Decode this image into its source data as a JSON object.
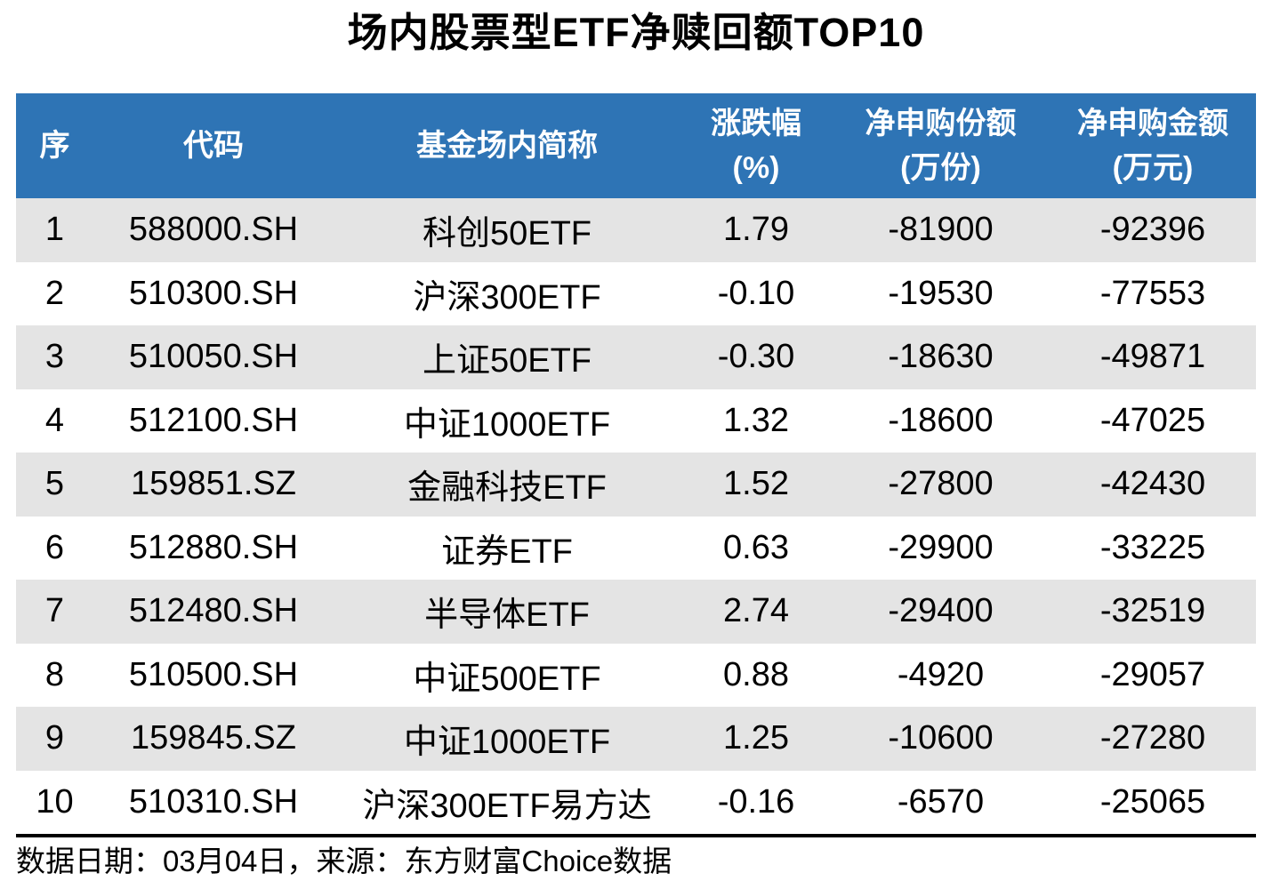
{
  "page": {
    "title": "场内股票型ETF净赎回额TOP10",
    "footer_note": "数据日期：03月04日，来源：东方财富Choice数据"
  },
  "colors": {
    "header_bg": "#2e74b5",
    "header_text": "#ffffff",
    "alt_row_bg": "#e4e4e4",
    "body_text": "#000000"
  },
  "table": {
    "columns": [
      {
        "line1": "序",
        "line2": ""
      },
      {
        "line1": "代码",
        "line2": ""
      },
      {
        "line1": "基金场内简称",
        "line2": ""
      },
      {
        "line1": "涨跌幅",
        "line2": "(%)"
      },
      {
        "line1": "净申购份额",
        "line2": "(万份)"
      },
      {
        "line1": "净申购金额",
        "line2": "(万元)"
      }
    ],
    "rows": [
      [
        "1",
        "588000.SH",
        "科创50ETF",
        "1.79",
        "-81900",
        "-92396"
      ],
      [
        "2",
        "510300.SH",
        "沪深300ETF",
        "-0.10",
        "-19530",
        "-77553"
      ],
      [
        "3",
        "510050.SH",
        "上证50ETF",
        "-0.30",
        "-18630",
        "-49871"
      ],
      [
        "4",
        "512100.SH",
        "中证1000ETF",
        "1.32",
        "-18600",
        "-47025"
      ],
      [
        "5",
        "159851.SZ",
        "金融科技ETF",
        "1.52",
        "-27800",
        "-42430"
      ],
      [
        "6",
        "512880.SH",
        "证券ETF",
        "0.63",
        "-29900",
        "-33225"
      ],
      [
        "7",
        "512480.SH",
        "半导体ETF",
        "2.74",
        "-29400",
        "-32519"
      ],
      [
        "8",
        "510500.SH",
        "中证500ETF",
        "0.88",
        "-4920",
        "-29057"
      ],
      [
        "9",
        "159845.SZ",
        "中证1000ETF",
        "1.25",
        "-10600",
        "-27280"
      ],
      [
        "10",
        "510310.SH",
        "沪深300ETF易方达",
        "-0.16",
        "-6570",
        "-25065"
      ]
    ]
  },
  "chart_data": {
    "type": "table",
    "title": "场内股票型ETF净赎回额TOP10",
    "columns": [
      "序",
      "代码",
      "基金场内简称",
      "涨跌幅(%)",
      "净申购份额(万份)",
      "净申购金额(万元)"
    ],
    "rows": [
      [
        1,
        "588000.SH",
        "科创50ETF",
        1.79,
        -81900,
        -92396
      ],
      [
        2,
        "510300.SH",
        "沪深300ETF",
        -0.1,
        -19530,
        -77553
      ],
      [
        3,
        "510050.SH",
        "上证50ETF",
        -0.3,
        -18630,
        -49871
      ],
      [
        4,
        "512100.SH",
        "中证1000ETF",
        1.32,
        -18600,
        -47025
      ],
      [
        5,
        "159851.SZ",
        "金融科技ETF",
        1.52,
        -27800,
        -42430
      ],
      [
        6,
        "512880.SH",
        "证券ETF",
        0.63,
        -29900,
        -33225
      ],
      [
        7,
        "512480.SH",
        "半导体ETF",
        2.74,
        -29400,
        -32519
      ],
      [
        8,
        "510500.SH",
        "中证500ETF",
        0.88,
        -4920,
        -29057
      ],
      [
        9,
        "159845.SZ",
        "中证1000ETF",
        1.25,
        -10600,
        -27280
      ],
      [
        10,
        "510310.SH",
        "沪深300ETF易方达",
        -0.16,
        -6570,
        -25065
      ]
    ],
    "source_note": "数据日期：03月04日，来源：东方财富Choice数据"
  }
}
